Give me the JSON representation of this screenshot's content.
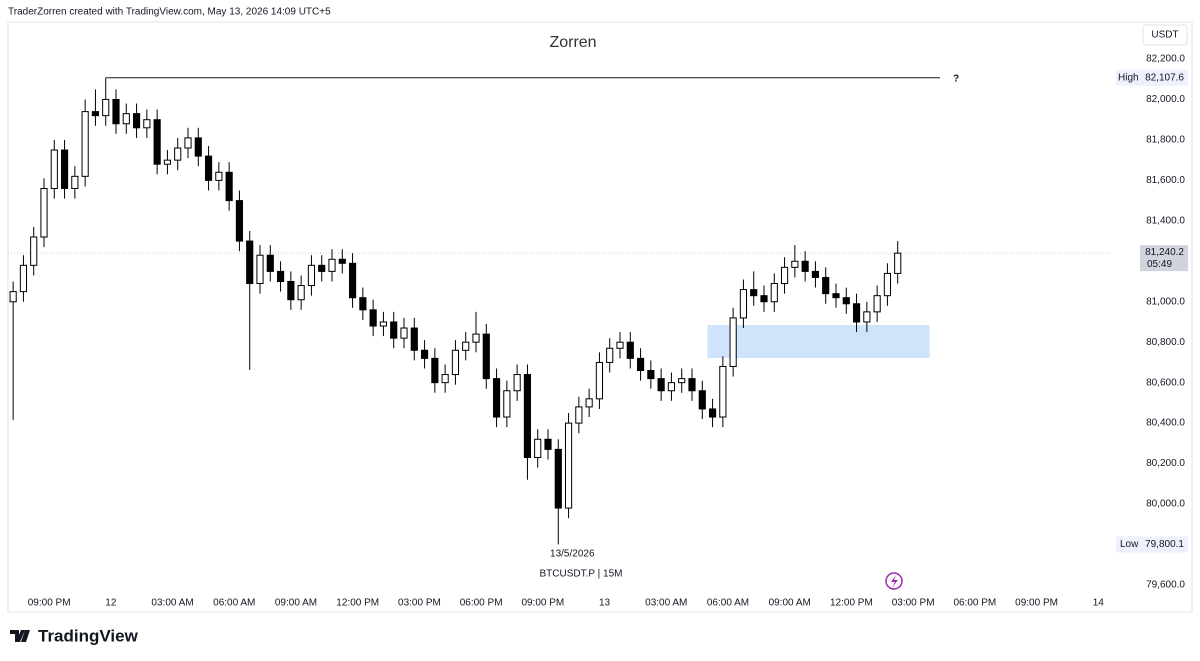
{
  "header": "TraderZorren created with TradingView.com, May 13, 2026 14:09 UTC+5",
  "logo": "TradingView",
  "chart_data": {
    "type": "candlestick",
    "title": "Zorren",
    "symbol_label": "BTCUSDT.P | 15M",
    "date_label": "13/5/2026",
    "currency": "USDT",
    "annotation": "?",
    "up_color": "#ffffff",
    "down_color": "#000000",
    "wick_color": "#000000",
    "grid": false,
    "x": [
      -4.75,
      -4.25,
      -3.75,
      -3.25,
      -2.75,
      -2.25,
      -1.75,
      -1.25,
      -0.75,
      -0.25,
      0.25,
      0.75,
      1.25,
      1.75,
      2.25,
      2.75,
      3.25,
      3.75,
      4.25,
      4.75,
      5.25,
      5.75,
      6.25,
      6.75,
      7.25,
      7.75,
      8.25,
      8.75,
      9.25,
      9.75,
      10.25,
      10.75,
      11.25,
      11.75,
      12.25,
      12.75,
      13.25,
      13.75,
      14.25,
      14.75,
      15.25,
      15.75,
      16.25,
      16.75,
      17.25,
      17.75,
      18.25,
      18.75,
      19.25,
      19.75,
      20.25,
      20.75,
      21.25,
      21.75,
      22.25,
      22.75,
      23.25,
      23.75,
      24.25,
      24.75,
      25.25,
      25.75,
      26.25,
      26.75,
      27.25,
      27.75,
      28.25,
      28.75,
      29.25,
      29.75,
      30.25,
      30.75,
      31.25,
      31.75,
      32.25,
      32.75,
      33.25,
      33.75,
      34.25,
      34.75,
      35.25,
      35.75,
      36.25,
      36.75,
      37.25,
      37.75,
      38.25
    ],
    "open": [
      81000,
      81050,
      81180,
      81320,
      81560,
      81750,
      81560,
      81620,
      81940,
      81920,
      82000,
      81880,
      81930,
      81860,
      81900,
      81680,
      81700,
      81760,
      81810,
      81720,
      81600,
      81640,
      81500,
      81300,
      81090,
      81230,
      81150,
      81100,
      81010,
      81080,
      81180,
      81150,
      81210,
      81190,
      81020,
      80960,
      80880,
      80900,
      80820,
      80870,
      80760,
      80720,
      80600,
      80640,
      80760,
      80800,
      80840,
      80620,
      80430,
      80560,
      80640,
      80230,
      80320,
      80270,
      79980,
      80400,
      80480,
      80520,
      80700,
      80770,
      80800,
      80720,
      80660,
      80620,
      80560,
      80600,
      80620,
      80560,
      80470,
      80430,
      80680,
      80920,
      81060,
      81030,
      81000,
      81090,
      81170,
      81200,
      81150,
      81120,
      81040,
      81020,
      80990,
      80900,
      80950,
      81030,
      81140
    ],
    "high": [
      81100,
      81230,
      81370,
      81610,
      81800,
      81800,
      81670,
      82000,
      82050,
      82107.6,
      82050,
      81980,
      81980,
      81950,
      81950,
      81750,
      81810,
      81860,
      81860,
      81770,
      81690,
      81690,
      81550,
      81350,
      81280,
      81280,
      81200,
      81150,
      81130,
      81230,
      81230,
      81260,
      81260,
      81240,
      81070,
      81010,
      80950,
      80950,
      80920,
      80920,
      80810,
      80770,
      80690,
      80810,
      80850,
      80950,
      80890,
      80670,
      80610,
      80690,
      80690,
      80370,
      80370,
      80320,
      80450,
      80530,
      80570,
      80750,
      80820,
      80850,
      80850,
      80770,
      80710,
      80670,
      80650,
      80670,
      80670,
      80610,
      80520,
      80730,
      80970,
      81110,
      81150,
      81080,
      81140,
      81220,
      81280,
      81250,
      81200,
      81170,
      81090,
      81070,
      81040,
      81000,
      81080,
      81190,
      81300
    ],
    "low": [
      80416,
      81000,
      81130,
      81270,
      81510,
      81510,
      81510,
      81570,
      81870,
      81870,
      81830,
      81830,
      81810,
      81810,
      81630,
      81630,
      81650,
      81710,
      81670,
      81550,
      81550,
      81450,
      81250,
      80663,
      81040,
      81100,
      81050,
      80960,
      80960,
      81030,
      81100,
      81100,
      81140,
      80970,
      80910,
      80830,
      80830,
      80770,
      80770,
      80710,
      80670,
      80550,
      80550,
      80590,
      80710,
      80750,
      80570,
      80380,
      80380,
      80510,
      80120,
      80180,
      80220,
      79800.1,
      79930,
      80350,
      80430,
      80470,
      80650,
      80720,
      80670,
      80610,
      80570,
      80510,
      80510,
      80550,
      80510,
      80420,
      80380,
      80380,
      80630,
      80870,
      80980,
      80950,
      80950,
      81040,
      81120,
      81100,
      81070,
      80990,
      80970,
      80940,
      80850,
      80850,
      80900,
      80980,
      81090
    ],
    "close": [
      81050,
      81180,
      81320,
      81560,
      81750,
      81560,
      81620,
      81940,
      81920,
      82000,
      81880,
      81930,
      81860,
      81900,
      81680,
      81700,
      81760,
      81810,
      81720,
      81600,
      81640,
      81500,
      81300,
      81090,
      81230,
      81150,
      81100,
      81010,
      81080,
      81180,
      81150,
      81210,
      81190,
      81020,
      80960,
      80880,
      80900,
      80820,
      80870,
      80760,
      80720,
      80600,
      80640,
      80760,
      80800,
      80840,
      80620,
      80430,
      80560,
      80640,
      80230,
      80320,
      80270,
      79980,
      80400,
      80480,
      80520,
      80700,
      80770,
      80800,
      80720,
      80660,
      80620,
      80560,
      80600,
      80620,
      80560,
      80470,
      80430,
      80680,
      80920,
      81060,
      81030,
      81000,
      81090,
      81170,
      81200,
      81150,
      81120,
      81040,
      81020,
      80990,
      80900,
      80950,
      81030,
      81140,
      81240.2
    ],
    "xlim": [
      -5,
      48.57
    ],
    "ylim": [
      79565,
      82383
    ],
    "xticks": [
      {
        "value": -3,
        "label": "09:00 PM"
      },
      {
        "value": 0,
        "label": "12"
      },
      {
        "value": 3,
        "label": "03:00 AM"
      },
      {
        "value": 6,
        "label": "06:00 AM"
      },
      {
        "value": 9,
        "label": "09:00 AM"
      },
      {
        "value": 12,
        "label": "12:00 PM"
      },
      {
        "value": 15,
        "label": "03:00 PM"
      },
      {
        "value": 18,
        "label": "06:00 PM"
      },
      {
        "value": 21,
        "label": "09:00 PM"
      },
      {
        "value": 24,
        "label": "13"
      },
      {
        "value": 27,
        "label": "03:00 AM"
      },
      {
        "value": 30,
        "label": "06:00 AM"
      },
      {
        "value": 33,
        "label": "09:00 AM"
      },
      {
        "value": 36,
        "label": "12:00 PM"
      },
      {
        "value": 39,
        "label": "03:00 PM"
      },
      {
        "value": 42,
        "label": "06:00 PM"
      },
      {
        "value": 45,
        "label": "09:00 PM"
      },
      {
        "value": 48,
        "label": "14"
      }
    ],
    "yticks": [
      {
        "value": 79600,
        "label": "79,600.0"
      },
      {
        "value": 79800,
        "label": "79,800.0"
      },
      {
        "value": 80000,
        "label": "80,000.0"
      },
      {
        "value": 80200,
        "label": "80,200.0"
      },
      {
        "value": 80400,
        "label": "80,400.0"
      },
      {
        "value": 80600,
        "label": "80,600.0"
      },
      {
        "value": 80800,
        "label": "80,800.0"
      },
      {
        "value": 81000,
        "label": "81,000.0"
      },
      {
        "value": 81200,
        "label": "81,200.0"
      },
      {
        "value": 81400,
        "label": "81,400.0"
      },
      {
        "value": 81600,
        "label": "81,600.0"
      },
      {
        "value": 81800,
        "label": "81,800.0"
      },
      {
        "value": 82000,
        "label": "82,000.0"
      },
      {
        "value": 82200,
        "label": "82,200.0"
      }
    ],
    "high_marker": {
      "label": "High",
      "value": 82107.6,
      "value_label": "82,107.6"
    },
    "low_marker": {
      "label": "Low",
      "value": 79800.1,
      "value_label": "79,800.1"
    },
    "last_price": {
      "value": 81240.2,
      "value_label": "81,240.2",
      "countdown": "05:49"
    },
    "zone": {
      "x": [
        29.0,
        39.8
      ],
      "y": [
        80722,
        80885
      ],
      "color": "#cfe3fb"
    }
  }
}
